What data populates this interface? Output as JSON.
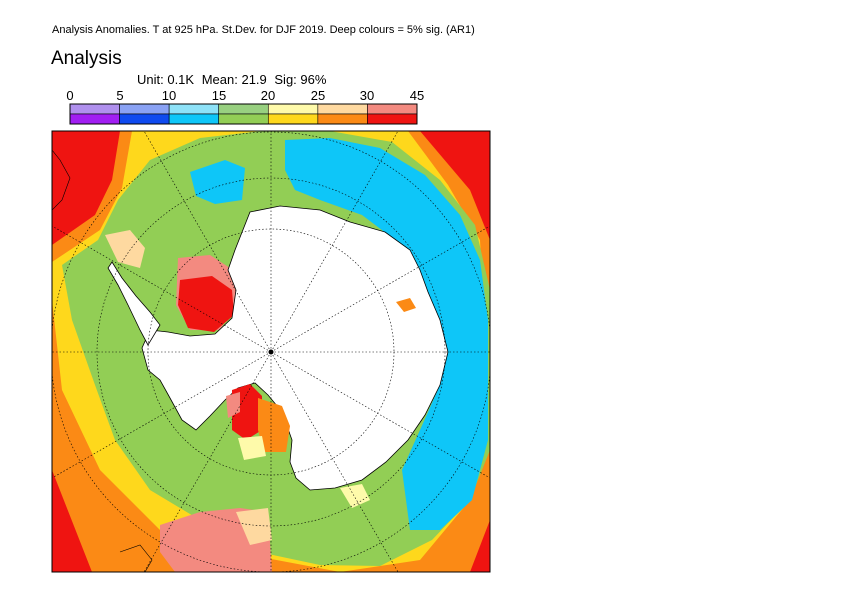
{
  "header": {
    "caption": "Analysis Anomalies. T at 925 hPa. St.Dev. for DJF 2019.  Deep colours = 5% sig. (AR1)",
    "title": "Analysis",
    "unit": "Unit: 0.1K",
    "mean": "Mean: 21.9",
    "sig": "Sig: 96%"
  },
  "colorbar": {
    "ticks": [
      "0",
      "5",
      "10",
      "15",
      "20",
      "25",
      "30",
      "45"
    ],
    "light_colors": [
      "#b090ee",
      "#8aa2f4",
      "#8ee2f8",
      "#98d080",
      "#fefaaa",
      "#fed9a0",
      "#f38a80"
    ],
    "deep_colors": [
      "#a11ef2",
      "#0f4aef",
      "#0ec6f8",
      "#92ce55",
      "#fed81c",
      "#fb8a15",
      "#ef1411"
    ]
  },
  "map": {
    "projection": "south-polar-stereographic",
    "field": "temperature-stddev-anomaly",
    "land_color": "#ffffff",
    "coastline_color": "#000000",
    "gridline_style": "dotted"
  }
}
